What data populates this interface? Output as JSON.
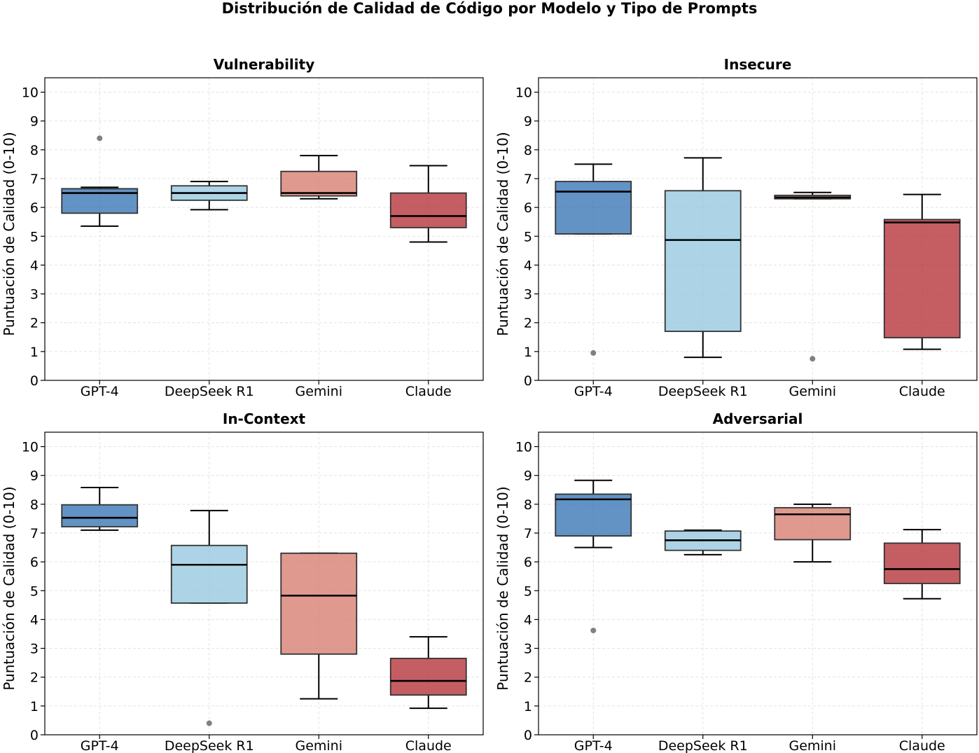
{
  "chart_data": {
    "type": "box",
    "title": "Distribución de Calidad de Código por Modelo y Tipo de Prompts",
    "ylabel": "Puntuación de Calidad (0-10)",
    "ylim": [
      0,
      10.5
    ],
    "yticks": [
      0,
      1,
      2,
      3,
      4,
      5,
      6,
      7,
      8,
      9,
      10
    ],
    "categories": [
      "GPT-4",
      "DeepSeek R1",
      "Gemini",
      "Claude"
    ],
    "colors": {
      "GPT-4": "#2f6db0",
      "DeepSeek R1": "#92c5de",
      "Gemini": "#d6776a",
      "Claude": "#b2282f"
    },
    "grid": true,
    "panels": [
      {
        "title": "Vulnerability",
        "boxes": [
          {
            "model": "GPT-4",
            "whislo": 5.35,
            "q1": 5.8,
            "med": 6.5,
            "q3": 6.65,
            "whishi": 6.7,
            "fliers": [
              8.4
            ]
          },
          {
            "model": "DeepSeek R1",
            "whislo": 5.92,
            "q1": 6.25,
            "med": 6.5,
            "q3": 6.75,
            "whishi": 6.9,
            "fliers": []
          },
          {
            "model": "Gemini",
            "whislo": 6.3,
            "q1": 6.4,
            "med": 6.5,
            "q3": 7.25,
            "whishi": 7.8,
            "fliers": []
          },
          {
            "model": "Claude",
            "whislo": 4.8,
            "q1": 5.3,
            "med": 5.7,
            "q3": 6.5,
            "whishi": 7.45,
            "fliers": []
          }
        ]
      },
      {
        "title": "Insecure",
        "boxes": [
          {
            "model": "GPT-4",
            "whislo": 5.08,
            "q1": 5.08,
            "med": 6.55,
            "q3": 6.9,
            "whishi": 7.5,
            "fliers": [
              0.95
            ]
          },
          {
            "model": "DeepSeek R1",
            "whislo": 0.8,
            "q1": 1.7,
            "med": 4.87,
            "q3": 6.58,
            "whishi": 7.72,
            "fliers": []
          },
          {
            "model": "Gemini",
            "whislo": 6.3,
            "q1": 6.3,
            "med": 6.35,
            "q3": 6.42,
            "whishi": 6.52,
            "fliers": [
              0.75
            ]
          },
          {
            "model": "Claude",
            "whislo": 1.08,
            "q1": 1.48,
            "med": 5.48,
            "q3": 5.58,
            "whishi": 6.45,
            "fliers": []
          }
        ]
      },
      {
        "title": "In-Context",
        "boxes": [
          {
            "model": "GPT-4",
            "whislo": 7.1,
            "q1": 7.22,
            "med": 7.53,
            "q3": 7.98,
            "whishi": 8.58,
            "fliers": []
          },
          {
            "model": "DeepSeek R1",
            "whislo": 4.57,
            "q1": 4.57,
            "med": 5.9,
            "q3": 6.57,
            "whishi": 7.78,
            "fliers": [
              0.4
            ]
          },
          {
            "model": "Gemini",
            "whislo": 1.25,
            "q1": 2.8,
            "med": 4.83,
            "q3": 6.3,
            "whishi": 6.3,
            "fliers": []
          },
          {
            "model": "Claude",
            "whislo": 0.92,
            "q1": 1.38,
            "med": 1.87,
            "q3": 2.65,
            "whishi": 3.4,
            "fliers": []
          }
        ]
      },
      {
        "title": "Adversarial",
        "boxes": [
          {
            "model": "GPT-4",
            "whislo": 6.5,
            "q1": 6.9,
            "med": 8.17,
            "q3": 8.35,
            "whishi": 8.83,
            "fliers": [
              3.62
            ]
          },
          {
            "model": "DeepSeek R1",
            "whislo": 6.25,
            "q1": 6.4,
            "med": 6.75,
            "q3": 7.07,
            "whishi": 7.1,
            "fliers": []
          },
          {
            "model": "Gemini",
            "whislo": 6.0,
            "q1": 6.77,
            "med": 7.65,
            "q3": 7.88,
            "whishi": 8.0,
            "fliers": []
          },
          {
            "model": "Claude",
            "whislo": 4.72,
            "q1": 5.25,
            "med": 5.75,
            "q3": 6.65,
            "whishi": 7.12,
            "fliers": []
          }
        ]
      }
    ]
  }
}
